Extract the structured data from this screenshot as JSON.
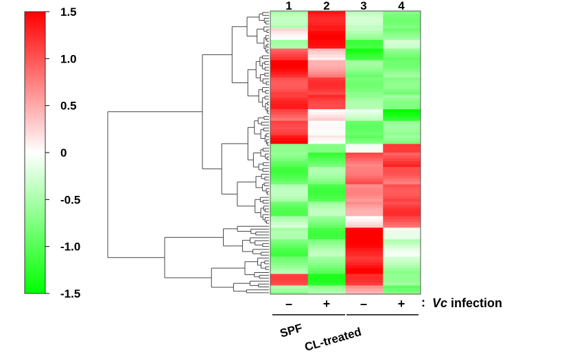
{
  "chart_data": {
    "type": "heatmap",
    "title": "",
    "colorbar": {
      "ticks": [
        "1.5",
        "1.0",
        "0.5",
        "0",
        "-0.5",
        "-1.0",
        "-1.5"
      ],
      "min": -1.5,
      "max": 1.5,
      "low_color": "#00ff00",
      "mid_color": "#ffffff",
      "high_color": "#ff0000"
    },
    "columns": [
      {
        "number": "1",
        "infection": "–"
      },
      {
        "number": "2",
        "infection": "+"
      },
      {
        "number": "3",
        "infection": "–"
      },
      {
        "number": "4",
        "infection": "+"
      }
    ],
    "infection_label_prefix": ":",
    "infection_label_italic": "Vc",
    "infection_label_text": "infection",
    "groups": [
      {
        "label": "SPF",
        "columns": [
          1,
          2
        ]
      },
      {
        "label": "CL-treated",
        "columns": [
          3,
          4
        ]
      }
    ],
    "row_blocks": [
      {
        "rows": 6,
        "values": [
          -0.6,
          1.5,
          -0.5,
          -0.6
        ]
      },
      {
        "rows": 4,
        "values": [
          0.2,
          1.4,
          -0.4,
          -0.8
        ]
      },
      {
        "rows": 3,
        "values": [
          -0.3,
          1.2,
          -0.9,
          -0.5
        ]
      },
      {
        "rows": 4,
        "values": [
          1.0,
          0.3,
          -1.3,
          -0.7
        ]
      },
      {
        "rows": 6,
        "values": [
          1.3,
          0.7,
          -0.8,
          -0.6
        ]
      },
      {
        "rows": 6,
        "values": [
          1.2,
          1.0,
          -0.6,
          -0.9
        ]
      },
      {
        "rows": 5,
        "values": [
          1.1,
          1.3,
          -0.7,
          -0.5
        ]
      },
      {
        "rows": 4,
        "values": [
          0.9,
          0.2,
          -0.3,
          -1.3
        ]
      },
      {
        "rows": 5,
        "values": [
          1.3,
          -0.2,
          -0.7,
          -0.8
        ]
      },
      {
        "rows": 3,
        "values": [
          1.4,
          0.1,
          -0.9,
          -0.6
        ]
      },
      {
        "rows": 3,
        "values": [
          -0.9,
          -0.5,
          -0.3,
          1.4
        ]
      },
      {
        "rows": 5,
        "values": [
          -0.8,
          -1.0,
          0.9,
          1.1
        ]
      },
      {
        "rows": 6,
        "values": [
          -0.9,
          -0.7,
          1.0,
          0.8
        ]
      },
      {
        "rows": 6,
        "values": [
          -0.6,
          -0.9,
          0.5,
          1.2
        ]
      },
      {
        "rows": 5,
        "values": [
          -0.8,
          -0.6,
          0.7,
          1.0
        ]
      },
      {
        "rows": 4,
        "values": [
          -0.3,
          -0.8,
          0.2,
          0.9
        ]
      },
      {
        "rows": 4,
        "values": [
          -0.7,
          -0.9,
          1.3,
          0.1
        ]
      },
      {
        "rows": 6,
        "values": [
          -0.9,
          -0.6,
          1.5,
          -0.3
        ]
      },
      {
        "rows": 6,
        "values": [
          -0.6,
          -0.8,
          1.4,
          -0.5
        ]
      },
      {
        "rows": 4,
        "values": [
          0.9,
          -1.1,
          1.0,
          -0.4
        ]
      },
      {
        "rows": 3,
        "values": [
          -0.5,
          -0.6,
          0.6,
          -0.9
        ]
      }
    ]
  }
}
